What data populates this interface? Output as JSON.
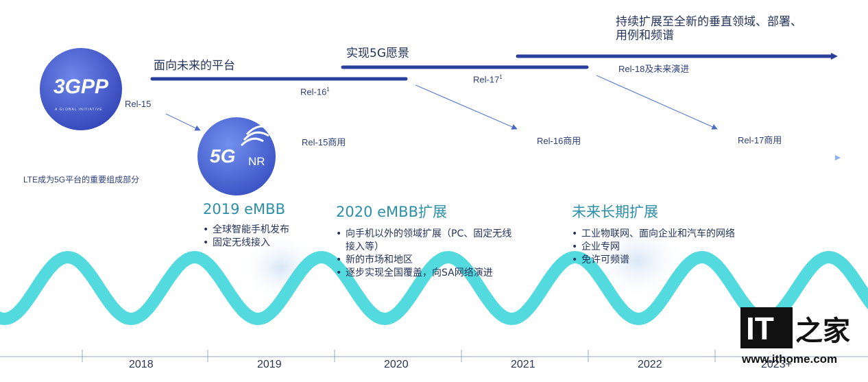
{
  "phases_top": {
    "platform": "面向未来的平台",
    "vision": "实现5G愿景",
    "expand_line1": "持续扩展至全新的垂直领域、部署、",
    "expand_line2": "用例和频谱"
  },
  "releases": {
    "rel15": "Rel-15",
    "rel16": "Rel-16",
    "rel16_sup": "1",
    "rel17": "Rel-17",
    "rel17_sup": "1",
    "rel18": "Rel-18及未来演进"
  },
  "commercial": {
    "rel15": "Rel-15商用",
    "rel16": "Rel-16商用",
    "rel17": "Rel-17商用"
  },
  "lte_note": "LTE成为5G平台的重要组成部分",
  "logos": {
    "threegpp": "3GPP",
    "threegpp_tagline": "A GLOBAL INITIATIVE",
    "fiveg": "5G",
    "nr": "NR"
  },
  "sections": [
    {
      "title": "2019 eMBB",
      "bullets": [
        "全球智能手机发布",
        "固定无线接入"
      ]
    },
    {
      "title": "2020 eMBB扩展",
      "bullets": [
        "向手机以外的领域扩展（PC、固定无线",
        "接入等）",
        "新的市场和地区",
        "逐步实现全国覆盖，向SA网络演进"
      ]
    },
    {
      "title": "未来长期扩展",
      "bullets": [
        "工业物联网、面向企业和汽车的网络",
        "企业专网",
        "免许可频谱"
      ]
    }
  ],
  "years": [
    "2018",
    "2019",
    "2020",
    "2021",
    "2022",
    "2023+"
  ],
  "watermark": {
    "it": "IT",
    "cn": "之家",
    "url": "www.ithome.com"
  },
  "colors": {
    "wave": "#3fd6dc",
    "line": "#2f4aa8",
    "accent": "#2d8fa8"
  }
}
